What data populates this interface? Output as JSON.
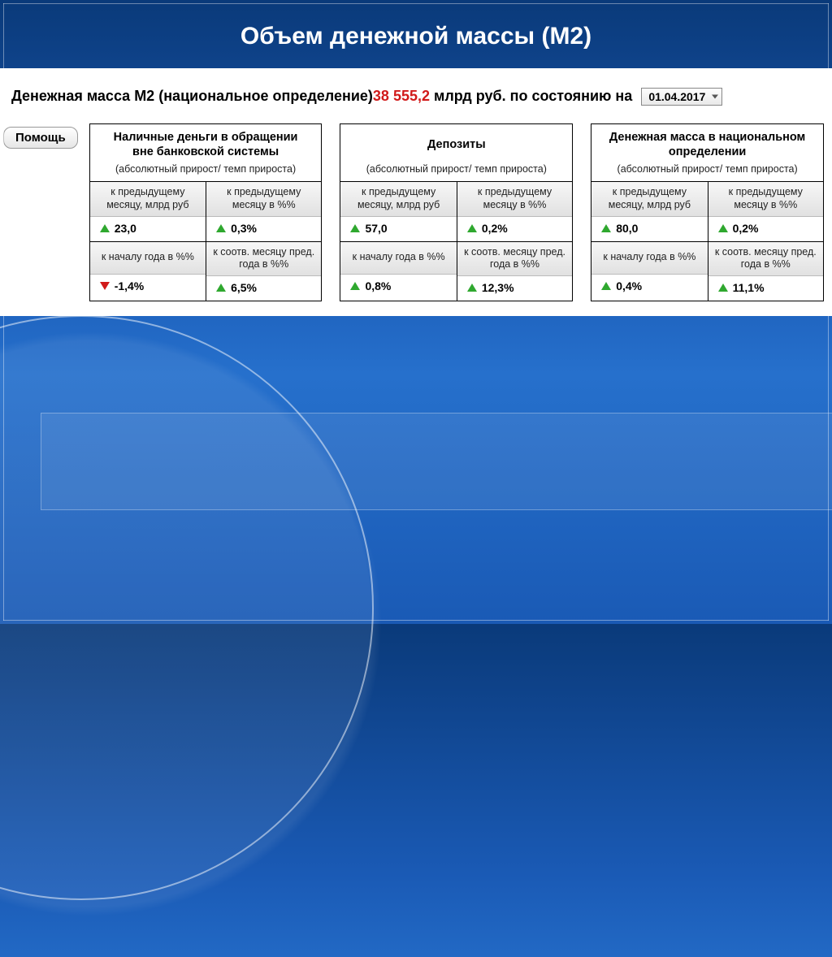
{
  "slide": {
    "title": "Объем денежной массы (М2)"
  },
  "m2": {
    "label_pre": "Денежная масса М2 (национальное определение)",
    "value": "38 555,2",
    "label_post": "  млрд руб. по состоянию на",
    "date_value": "01.04.2017"
  },
  "help_label": "Помощь",
  "cards": [
    {
      "title_line1": "Наличные деньги в обращении",
      "title_line2": "вне банковской системы",
      "sub": "(абсолютный прирост/ темп прироста)",
      "cells": [
        {
          "head": "к предыдущему месяцу, млрд руб",
          "dir": "up",
          "val": "23,0"
        },
        {
          "head": "к предыдущему месяцу в %%",
          "dir": "up",
          "val": "0,3%"
        },
        {
          "head": "к началу года в %%",
          "dir": "down",
          "val": "-1,4%"
        },
        {
          "head": "к соотв. месяцу пред. года в %%",
          "dir": "up",
          "val": "6,5%"
        }
      ]
    },
    {
      "title_line1": "Депозиты",
      "title_line2": "",
      "sub": "(абсолютный прирост/ темп прироста)",
      "cells": [
        {
          "head": "к предыдущему месяцу, млрд руб",
          "dir": "up",
          "val": "57,0"
        },
        {
          "head": "к предыдущему месяцу в %%",
          "dir": "up",
          "val": "0,2%"
        },
        {
          "head": "к началу года в %%",
          "dir": "up",
          "val": "0,8%"
        },
        {
          "head": "к соотв. месяцу пред. года в %%",
          "dir": "up",
          "val": "12,3%"
        }
      ]
    },
    {
      "title_line1": "Денежная масса в национальном",
      "title_line2": "определении",
      "sub": "(абсолютный прирост/ темп прироста)",
      "cells": [
        {
          "head": "к предыдущему месяцу, млрд руб",
          "dir": "up",
          "val": "80,0"
        },
        {
          "head": "к предыдущему месяцу в %%",
          "dir": "up",
          "val": "0,2%"
        },
        {
          "head": "к началу года в %%",
          "dir": "up",
          "val": "0,4%"
        },
        {
          "head": "к соотв. месяцу пред. года в %%",
          "dir": "up",
          "val": "11,1%"
        }
      ]
    }
  ],
  "colors": {
    "title": "#ffffff",
    "value_red": "#d11a1a",
    "arrow_up": "#2fa82f",
    "arrow_down": "#d11a1a",
    "bg_top": "#0a3a7a",
    "bg_mid": "#2670cc"
  }
}
